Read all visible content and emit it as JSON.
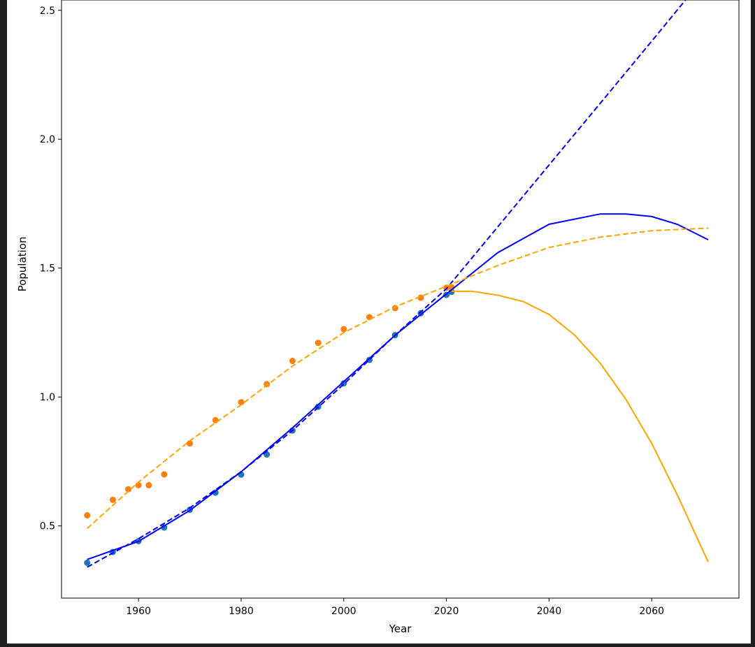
{
  "chart_data": {
    "type": "scatter",
    "title": "",
    "xlabel": "Year",
    "ylabel": "Population",
    "xlim": [
      1945,
      2077
    ],
    "ylim": [
      0.22,
      2.54
    ],
    "xticks": [
      1960,
      1980,
      2000,
      2020,
      2040,
      2060
    ],
    "yticks": [
      0.5,
      1.0,
      1.5,
      2.0,
      2.5
    ],
    "ytick_labels": [
      "0.5",
      "1.0",
      "1.5",
      "2.0",
      "2.5"
    ],
    "grid": false,
    "legend": "none",
    "scatter_series": [
      {
        "color": "#1f77b4",
        "points": [
          [
            1950,
            0.357
          ],
          [
            1955,
            0.399
          ],
          [
            1960,
            0.441
          ],
          [
            1965,
            0.494
          ],
          [
            1970,
            0.563
          ],
          [
            1975,
            0.629
          ],
          [
            1980,
            0.699
          ],
          [
            1985,
            0.777
          ],
          [
            1990,
            0.87
          ],
          [
            1995,
            0.962
          ],
          [
            2000,
            1.053
          ],
          [
            2005,
            1.144
          ],
          [
            2010,
            1.24
          ],
          [
            2015,
            1.325
          ],
          [
            2020,
            1.396
          ],
          [
            2021,
            1.408
          ]
        ]
      },
      {
        "color": "#ff7f0e",
        "points": [
          [
            1950,
            0.541
          ],
          [
            1955,
            0.601
          ],
          [
            1958,
            0.642
          ],
          [
            1960,
            0.658
          ],
          [
            1962,
            0.658
          ],
          [
            1965,
            0.7
          ],
          [
            1970,
            0.82
          ],
          [
            1975,
            0.91
          ],
          [
            1980,
            0.98
          ],
          [
            1985,
            1.05
          ],
          [
            1990,
            1.14
          ],
          [
            1995,
            1.21
          ],
          [
            2000,
            1.263
          ],
          [
            2005,
            1.31
          ],
          [
            2010,
            1.345
          ],
          [
            2015,
            1.385
          ],
          [
            2020,
            1.424
          ],
          [
            2021,
            1.426
          ]
        ]
      }
    ],
    "line_series": [
      {
        "color": "#0000ff",
        "style": "solid",
        "points": [
          [
            1950,
            0.37
          ],
          [
            1960,
            0.44
          ],
          [
            1970,
            0.56
          ],
          [
            1980,
            0.71
          ],
          [
            1990,
            0.88
          ],
          [
            2000,
            1.06
          ],
          [
            2010,
            1.24
          ],
          [
            2020,
            1.4
          ],
          [
            2030,
            1.56
          ],
          [
            2040,
            1.67
          ],
          [
            2050,
            1.71
          ],
          [
            2055,
            1.71
          ],
          [
            2060,
            1.7
          ],
          [
            2065,
            1.67
          ],
          [
            2071,
            1.61
          ]
        ]
      },
      {
        "color": "#0000ff",
        "style": "dashed",
        "points": [
          [
            1950,
            0.34
          ],
          [
            1960,
            0.45
          ],
          [
            1970,
            0.57
          ],
          [
            1980,
            0.71
          ],
          [
            1990,
            0.87
          ],
          [
            2000,
            1.05
          ],
          [
            2010,
            1.24
          ],
          [
            2020,
            1.42
          ],
          [
            2030,
            1.66
          ],
          [
            2040,
            1.9
          ],
          [
            2050,
            2.14
          ],
          [
            2060,
            2.38
          ],
          [
            2067,
            2.55
          ]
        ]
      },
      {
        "color": "#ffa500",
        "style": "solid",
        "points": [
          [
            2021,
            1.41
          ],
          [
            2025,
            1.41
          ],
          [
            2030,
            1.395
          ],
          [
            2035,
            1.37
          ],
          [
            2040,
            1.32
          ],
          [
            2045,
            1.24
          ],
          [
            2050,
            1.13
          ],
          [
            2055,
            0.99
          ],
          [
            2060,
            0.82
          ],
          [
            2065,
            0.62
          ],
          [
            2071,
            0.36
          ]
        ]
      },
      {
        "color": "#ffa500",
        "style": "dashed",
        "points": [
          [
            1950,
            0.49
          ],
          [
            1955,
            0.58
          ],
          [
            1960,
            0.67
          ],
          [
            1970,
            0.83
          ],
          [
            1980,
            0.97
          ],
          [
            1990,
            1.12
          ],
          [
            2000,
            1.25
          ],
          [
            2010,
            1.35
          ],
          [
            2020,
            1.43
          ],
          [
            2030,
            1.51
          ],
          [
            2040,
            1.58
          ],
          [
            2050,
            1.62
          ],
          [
            2060,
            1.645
          ],
          [
            2071,
            1.655
          ]
        ]
      }
    ]
  }
}
